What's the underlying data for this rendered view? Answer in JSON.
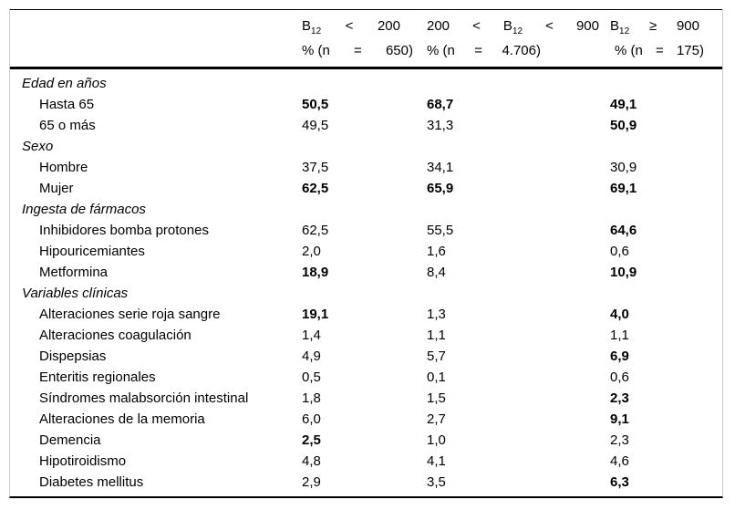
{
  "table": {
    "columns": [
      {
        "id": "b12-under-200",
        "title_tokens": [
          {
            "t": "B",
            "sub": "12"
          },
          {
            "t": "<"
          },
          {
            "t": "200"
          }
        ],
        "subtitle_tokens": [
          {
            "t": "% (n"
          },
          {
            "t": "="
          },
          {
            "t": "650)"
          }
        ]
      },
      {
        "id": "b12-200-to-900",
        "title_tokens": [
          {
            "t": "200"
          },
          {
            "t": "<"
          },
          {
            "t": "B",
            "sub": "12"
          },
          {
            "t": "<"
          },
          {
            "t": "900"
          }
        ],
        "subtitle_tokens": [
          {
            "t": "% (n"
          },
          {
            "t": "="
          },
          {
            "t": "4.706)"
          }
        ]
      },
      {
        "id": "b12-900-or-more",
        "title_tokens": [
          {
            "t": "B",
            "sub": "12"
          },
          {
            "t": "≥"
          },
          {
            "t": "900"
          }
        ],
        "subtitle_tokens": [
          {
            "t": "% (n"
          },
          {
            "t": "="
          },
          {
            "t": "175)"
          }
        ]
      }
    ],
    "sections": [
      {
        "label": "Edad en años",
        "rows": [
          {
            "label": "Hasta 65",
            "values": [
              {
                "v": "50,5",
                "bold": true
              },
              {
                "v": "68,7",
                "bold": true
              },
              {
                "v": "49,1",
                "bold": true
              }
            ]
          },
          {
            "label": "65 o más",
            "values": [
              {
                "v": "49,5",
                "bold": false
              },
              {
                "v": "31,3",
                "bold": false
              },
              {
                "v": "50,9",
                "bold": true
              }
            ]
          }
        ]
      },
      {
        "label": "Sexo",
        "rows": [
          {
            "label": "Hombre",
            "values": [
              {
                "v": "37,5",
                "bold": false
              },
              {
                "v": "34,1",
                "bold": false
              },
              {
                "v": "30,9",
                "bold": false
              }
            ]
          },
          {
            "label": "Mujer",
            "values": [
              {
                "v": "62,5",
                "bold": true
              },
              {
                "v": "65,9",
                "bold": true
              },
              {
                "v": "69,1",
                "bold": true
              }
            ]
          }
        ]
      },
      {
        "label": "Ingesta de fármacos",
        "rows": [
          {
            "label": "Inhibidores bomba protones",
            "values": [
              {
                "v": "62,5",
                "bold": false
              },
              {
                "v": "55,5",
                "bold": false
              },
              {
                "v": "64,6",
                "bold": true
              }
            ]
          },
          {
            "label": "Hipouricemiantes",
            "values": [
              {
                "v": "2,0",
                "bold": false
              },
              {
                "v": "1,6",
                "bold": false
              },
              {
                "v": "0,6",
                "bold": false
              }
            ]
          },
          {
            "label": "Metformina",
            "values": [
              {
                "v": "18,9",
                "bold": true
              },
              {
                "v": "8,4",
                "bold": false
              },
              {
                "v": "10,9",
                "bold": true
              }
            ]
          }
        ]
      },
      {
        "label": "Variables clínicas",
        "rows": [
          {
            "label": "Alteraciones serie roja sangre",
            "values": [
              {
                "v": "19,1",
                "bold": true
              },
              {
                "v": "1,3",
                "bold": false
              },
              {
                "v": "4,0",
                "bold": true
              }
            ]
          },
          {
            "label": "Alteraciones coagulación",
            "values": [
              {
                "v": "1,4",
                "bold": false
              },
              {
                "v": "1,1",
                "bold": false
              },
              {
                "v": "1,1",
                "bold": false
              }
            ]
          },
          {
            "label": "Dispepsias",
            "values": [
              {
                "v": "4,9",
                "bold": false
              },
              {
                "v": "5,7",
                "bold": false
              },
              {
                "v": "6,9",
                "bold": true
              }
            ]
          },
          {
            "label": "Enteritis regionales",
            "values": [
              {
                "v": "0,5",
                "bold": false
              },
              {
                "v": "0,1",
                "bold": false
              },
              {
                "v": "0,6",
                "bold": false
              }
            ]
          },
          {
            "label": "Síndromes malabsorción intestinal",
            "values": [
              {
                "v": "1,8",
                "bold": false
              },
              {
                "v": "1,5",
                "bold": false
              },
              {
                "v": "2,3",
                "bold": true
              }
            ]
          },
          {
            "label": "Alteraciones de la memoria",
            "values": [
              {
                "v": "6,0",
                "bold": false
              },
              {
                "v": "2,7",
                "bold": false
              },
              {
                "v": "9,1",
                "bold": true
              }
            ]
          },
          {
            "label": "Demencia",
            "values": [
              {
                "v": "2,5",
                "bold": true
              },
              {
                "v": "1,0",
                "bold": false
              },
              {
                "v": "2,3",
                "bold": false
              }
            ]
          },
          {
            "label": "Hipotiroidismo",
            "values": [
              {
                "v": "4,8",
                "bold": false
              },
              {
                "v": "4,1",
                "bold": false
              },
              {
                "v": "4,6",
                "bold": false
              }
            ]
          },
          {
            "label": "Diabetes mellitus",
            "values": [
              {
                "v": "2,9",
                "bold": false
              },
              {
                "v": "3,5",
                "bold": false
              },
              {
                "v": "6,3",
                "bold": true
              }
            ]
          }
        ]
      }
    ]
  },
  "colors": {
    "background": "#ffffff",
    "text": "#000000",
    "rule_dark": "#000000",
    "rule_light": "#cccccc"
  }
}
